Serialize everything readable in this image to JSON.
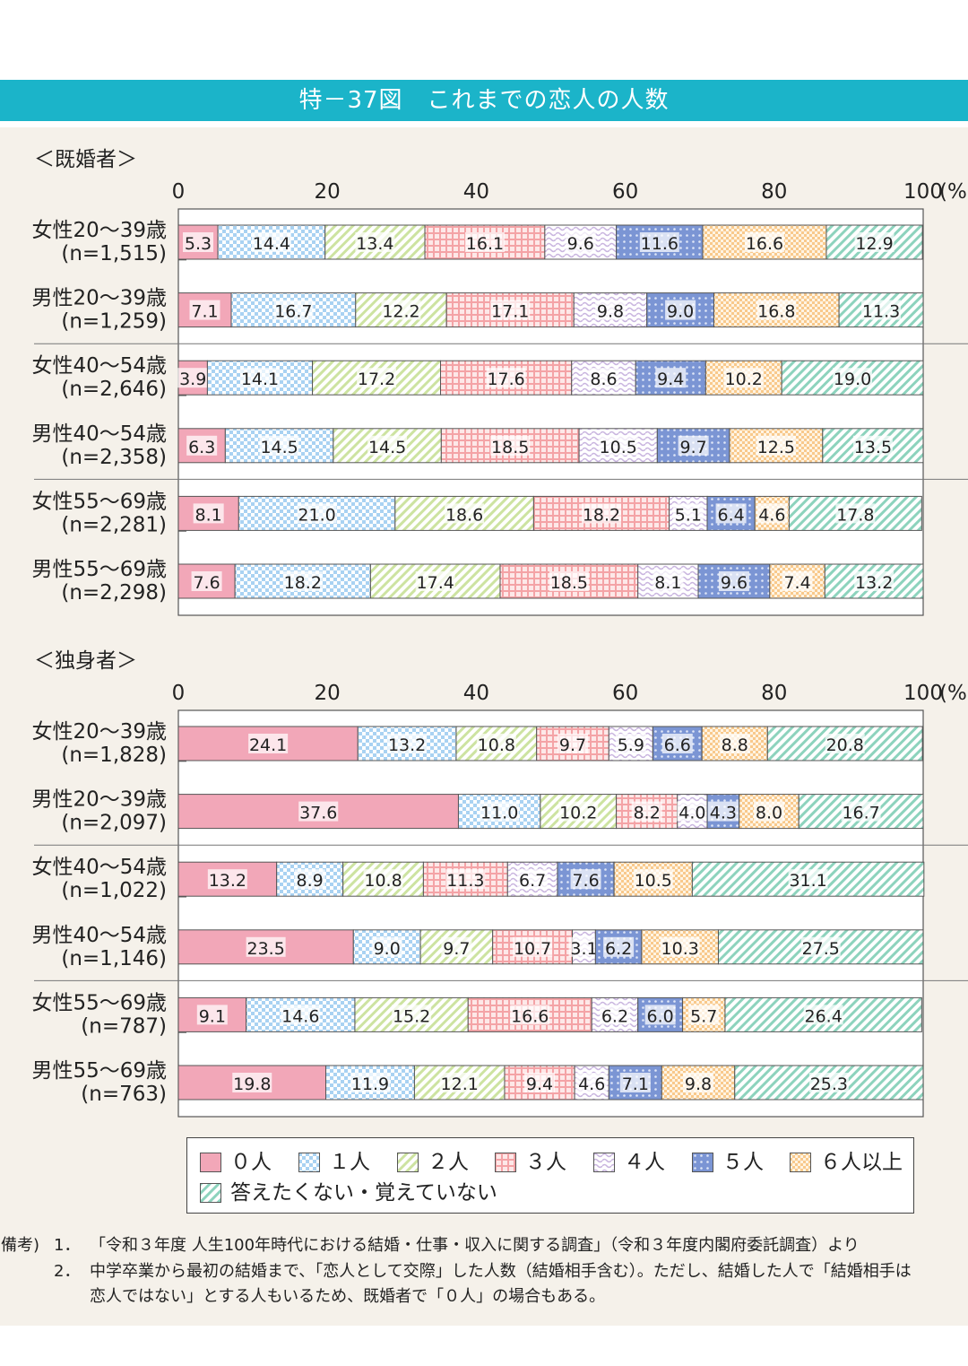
{
  "title": "特－37図　これまでの恋人の人数",
  "colors": {
    "title_bg": "#1bb4c9",
    "panel_bg": "#f5f1ea",
    "cat0": "#f2a7b8",
    "cat1": "#a9d2f2",
    "cat2": "#cde3a1",
    "cat3": "#f4a3a6",
    "cat4": "#c9b5df",
    "cat5": "#7b95d4",
    "cat6": "#f8c98c",
    "cat7": "#8dd3bd"
  },
  "legend": [
    {
      "label": "０人",
      "pattern": "solid",
      "color_key": "cat0"
    },
    {
      "label": "１人",
      "pattern": "check",
      "color_key": "cat1"
    },
    {
      "label": "２人",
      "pattern": "diag",
      "color_key": "cat2"
    },
    {
      "label": "３人",
      "pattern": "grid",
      "color_key": "cat3"
    },
    {
      "label": "４人",
      "pattern": "wave",
      "color_key": "cat4"
    },
    {
      "label": "５人",
      "pattern": "dots",
      "color_key": "cat5"
    },
    {
      "label": "６人以上",
      "pattern": "smallcheck",
      "color_key": "cat6"
    },
    {
      "label": "答えたくない・覚えていない",
      "pattern": "diag",
      "color_key": "cat7"
    }
  ],
  "chart_data": [
    {
      "type": "bar",
      "orientation": "horizontal",
      "stacked": true,
      "title": "＜既婚者＞",
      "unit_label": "(%)",
      "xlim": [
        0,
        100
      ],
      "ticks": [
        "0",
        "20",
        "40",
        "60",
        "80",
        "100"
      ],
      "categories": [
        "０人",
        "１人",
        "２人",
        "３人",
        "４人",
        "５人",
        "６人以上",
        "答えたくない・覚えていない"
      ],
      "rows": [
        {
          "label1": "女性20～39歳",
          "label2": "(n=1,515)",
          "values": [
            5.3,
            14.4,
            13.4,
            16.1,
            9.6,
            11.6,
            16.6,
            12.9
          ]
        },
        {
          "label1": "男性20～39歳",
          "label2": "(n=1,259)",
          "values": [
            7.1,
            16.7,
            12.2,
            17.1,
            9.8,
            9.0,
            16.8,
            11.3
          ]
        },
        {
          "label1": "女性40～54歳",
          "label2": "(n=2,646)",
          "values": [
            3.9,
            14.1,
            17.2,
            17.6,
            8.6,
            9.4,
            10.2,
            19.0
          ]
        },
        {
          "label1": "男性40～54歳",
          "label2": "(n=2,358)",
          "values": [
            6.3,
            14.5,
            14.5,
            18.5,
            10.5,
            9.7,
            12.5,
            13.5
          ]
        },
        {
          "label1": "女性55～69歳",
          "label2": "(n=2,281)",
          "values": [
            8.1,
            21.0,
            18.6,
            18.2,
            5.1,
            6.4,
            4.6,
            17.8
          ]
        },
        {
          "label1": "男性55～69歳",
          "label2": "(n=2,298)",
          "values": [
            7.6,
            18.2,
            17.4,
            18.5,
            8.1,
            9.6,
            7.4,
            13.2
          ]
        }
      ]
    },
    {
      "type": "bar",
      "orientation": "horizontal",
      "stacked": true,
      "title": "＜独身者＞",
      "unit_label": "(%)",
      "xlim": [
        0,
        100
      ],
      "ticks": [
        "0",
        "20",
        "40",
        "60",
        "80",
        "100"
      ],
      "categories": [
        "０人",
        "１人",
        "２人",
        "３人",
        "４人",
        "５人",
        "６人以上",
        "答えたくない・覚えていない"
      ],
      "rows": [
        {
          "label1": "女性20～39歳",
          "label2": "(n=1,828)",
          "values": [
            24.1,
            13.2,
            10.8,
            9.7,
            5.9,
            6.6,
            8.8,
            20.8
          ]
        },
        {
          "label1": "男性20～39歳",
          "label2": "(n=2,097)",
          "values": [
            37.6,
            11.0,
            10.2,
            8.2,
            4.0,
            4.3,
            8.0,
            16.7
          ]
        },
        {
          "label1": "女性40～54歳",
          "label2": "(n=1,022)",
          "values": [
            13.2,
            8.9,
            10.8,
            11.3,
            6.7,
            7.6,
            10.5,
            31.1
          ]
        },
        {
          "label1": "男性40～54歳",
          "label2": "(n=1,146)",
          "values": [
            23.5,
            9.0,
            9.7,
            10.7,
            3.1,
            6.2,
            10.3,
            27.5
          ]
        },
        {
          "label1": "女性55～69歳",
          "label2": "(n=787)",
          "values": [
            9.1,
            14.6,
            15.2,
            16.6,
            6.2,
            6.0,
            5.7,
            26.4
          ]
        },
        {
          "label1": "男性55～69歳",
          "label2": "(n=763)",
          "values": [
            19.8,
            11.9,
            12.1,
            9.4,
            4.6,
            7.1,
            9.8,
            25.3
          ]
        }
      ]
    }
  ],
  "notes": {
    "label": "(備考)",
    "note1_num": "1．",
    "note1": "「令和３年度 人生100年時代における結婚・仕事・収入に関する調査」（令和３年度内閣府委託調査）より",
    "note2_num": "2．",
    "note2a": "中学卒業から最初の結婚まで、「恋人として交際」した人数（結婚相手含む）。ただし、結婚した人で「結婚相手は",
    "note2b": "恋人ではない」とする人もいるため、既婚者で「０人」の場合もある。"
  }
}
